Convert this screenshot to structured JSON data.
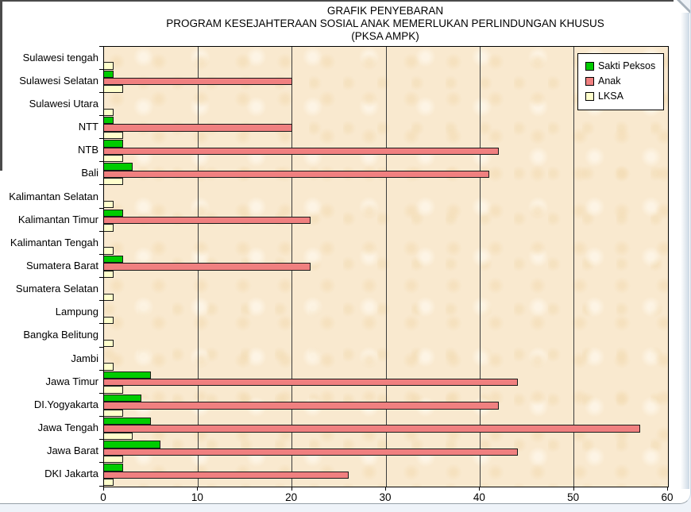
{
  "title": {
    "line1": "GRAFIK PENYEBARAN",
    "line2": "PROGRAM KESEJAHTERAAN SOSIAL ANAK MEMERLUKAN PERLINDUNGAN KHUSUS",
    "line3": "(PKSA AMPK)"
  },
  "chart_data": {
    "type": "bar",
    "orientation": "horizontal",
    "title": "GRAFIK PENYEBARAN PROGRAM KESEJAHTERAAN SOSIAL ANAK MEMERLUKAN PERLINDUNGAN KHUSUS (PKSA AMPK)",
    "categories": [
      "Sulawesi tengah",
      "Sulawesi Selatan",
      "Sulawesi Utara",
      "NTT",
      "NTB",
      "Bali",
      "Kalimantan Selatan",
      "Kalimantan Timur",
      "Kalimantan Tengah",
      "Sumatera Barat",
      "Sumatera Selatan",
      "Lampung",
      "Bangka Belitung",
      "Jambi",
      "Jawa Timur",
      "DI.Yogyakarta",
      "Jawa Tengah",
      "Jawa Barat",
      "DKI Jakarta"
    ],
    "series": [
      {
        "name": "Sakti Peksos",
        "color": "#00cc00",
        "values": [
          0,
          1,
          0,
          1,
          2,
          3,
          0,
          2,
          0,
          2,
          0,
          0,
          0,
          0,
          5,
          4,
          5,
          6,
          2
        ]
      },
      {
        "name": "Anak",
        "color": "#f08080",
        "values": [
          0,
          20,
          0,
          20,
          42,
          41,
          0,
          22,
          0,
          22,
          0,
          0,
          0,
          0,
          44,
          42,
          57,
          44,
          26
        ]
      },
      {
        "name": "LKSA",
        "color": "#ffffcc",
        "values": [
          1,
          2,
          1,
          2,
          2,
          2,
          1,
          1,
          1,
          1,
          1,
          1,
          1,
          1,
          2,
          2,
          3,
          2,
          1
        ]
      }
    ],
    "xlim": [
      0,
      60
    ],
    "x_ticks": [
      0,
      10,
      20,
      30,
      40,
      50,
      60
    ],
    "grid": true,
    "legend_position": "top-right",
    "plot_background": "#f9e9cf",
    "bar_border_color": "#000000"
  }
}
